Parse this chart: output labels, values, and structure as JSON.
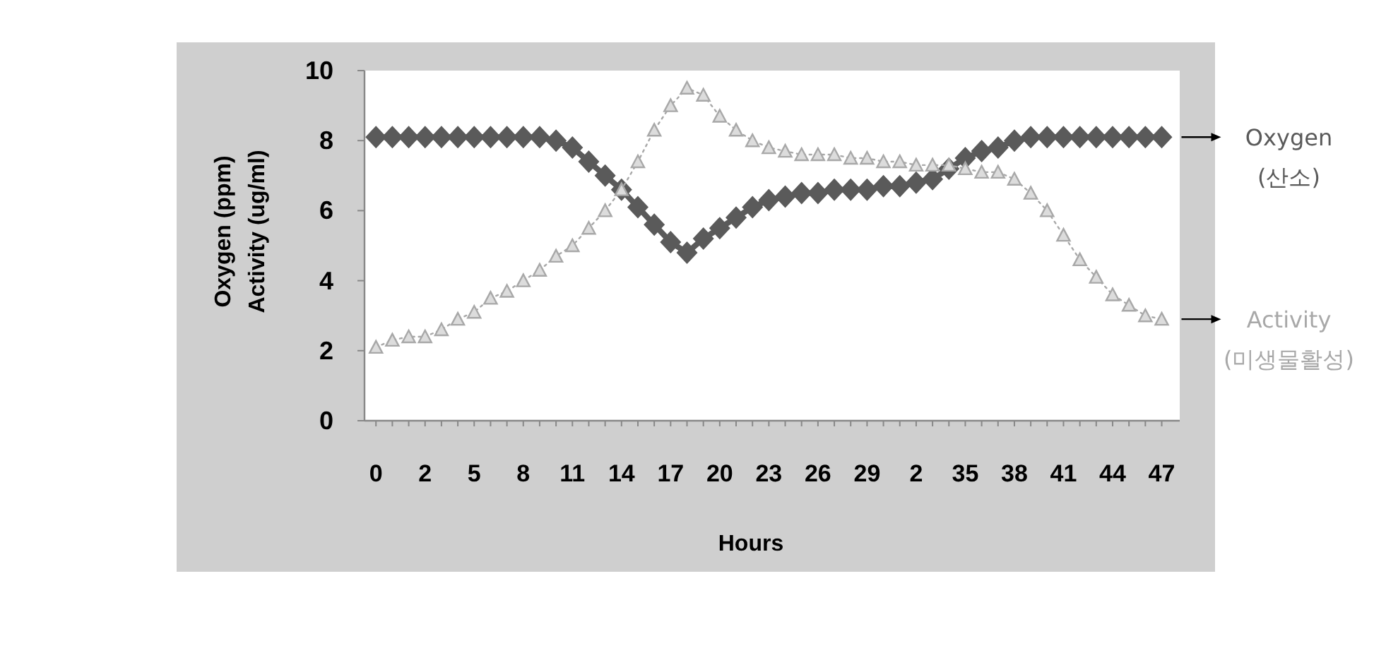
{
  "chart_data": {
    "type": "line",
    "xlabel": "Hours",
    "ylabel": "Oxygen (ppm)\nActivity (ug/ml)",
    "ylim": [
      0,
      10
    ],
    "yticks": [
      0,
      2,
      4,
      6,
      8,
      10
    ],
    "categories": [
      "0",
      null,
      null,
      "2",
      null,
      null,
      "5",
      null,
      null,
      "8",
      null,
      null,
      "11",
      null,
      null,
      "14",
      null,
      null,
      "17",
      null,
      null,
      "20",
      null,
      null,
      "23",
      null,
      null,
      "26",
      null,
      null,
      "29",
      null,
      null,
      "2",
      null,
      null,
      "35",
      null,
      null,
      "38",
      null,
      null,
      "41",
      null,
      null,
      "44",
      null,
      null,
      "47"
    ],
    "series": [
      {
        "name": "Oxygen (산소)",
        "color": "#5a5a5a",
        "marker": "diamond",
        "line_style": "solid",
        "values": [
          8.1,
          8.1,
          8.1,
          8.1,
          8.1,
          8.1,
          8.1,
          8.1,
          8.1,
          8.1,
          8.1,
          8.0,
          7.8,
          7.4,
          7.0,
          6.6,
          6.1,
          5.6,
          5.1,
          4.8,
          5.2,
          5.5,
          5.8,
          6.1,
          6.3,
          6.4,
          6.5,
          6.5,
          6.6,
          6.6,
          6.6,
          6.7,
          6.7,
          6.8,
          6.9,
          7.2,
          7.5,
          7.7,
          7.8,
          8.0,
          8.1,
          8.1,
          8.1,
          8.1,
          8.1,
          8.1,
          8.1,
          8.1,
          8.1
        ]
      },
      {
        "name": "Activity (미생물활성)",
        "color": "#a8a8a8",
        "marker": "triangle",
        "line_style": "dotted",
        "values": [
          2.1,
          2.3,
          2.4,
          2.4,
          2.6,
          2.9,
          3.1,
          3.5,
          3.7,
          4.0,
          4.3,
          4.7,
          5.0,
          5.5,
          6.0,
          6.6,
          7.4,
          8.3,
          9.0,
          9.5,
          9.3,
          8.7,
          8.3,
          8.0,
          7.8,
          7.7,
          7.6,
          7.6,
          7.6,
          7.5,
          7.5,
          7.4,
          7.4,
          7.3,
          7.3,
          7.3,
          7.2,
          7.1,
          7.1,
          6.9,
          6.5,
          6.0,
          5.3,
          4.6,
          4.1,
          3.6,
          3.3,
          3.0,
          2.9
        ]
      }
    ]
  }
}
